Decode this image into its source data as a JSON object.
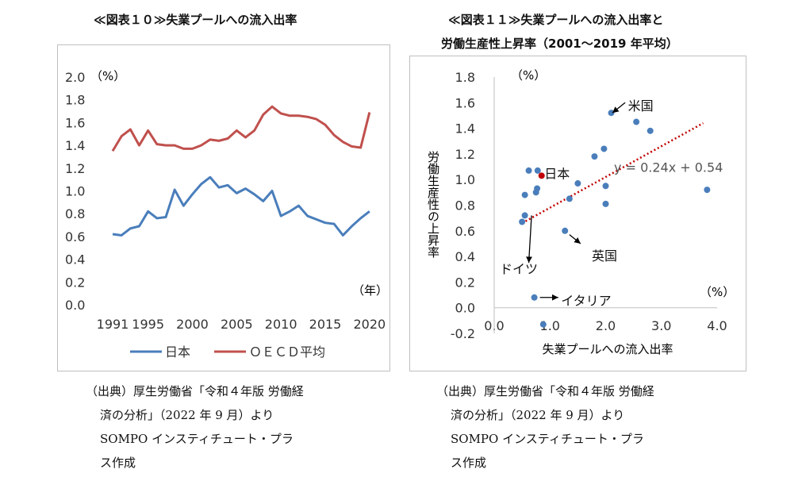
{
  "left": {
    "title": "≪図表１０≫失業プールへの流入出率",
    "unit_label": "（%）",
    "year_label": "（年）",
    "caption_lines": [
      "（出典）厚生労働省「令和４年版 労働経",
      "済の分析」（2022 年 9 月）より",
      "SOMPO インスティチュート・プラ",
      "ス作成"
    ]
  },
  "right": {
    "title_line1": "≪図表１１≫失業プールへの流入出率と",
    "title_line2": "労働生産性上昇率（2001～2019 年平均）",
    "unit_label_y": "（%）",
    "unit_label_x": "（%）",
    "caption_lines": [
      "（出典）厚生労働省「令和４年版 労働経",
      "済の分析」（2022 年 9 月）より",
      "SOMPO インスティチュート・プラ",
      "ス作成"
    ]
  },
  "chart_data": [
    {
      "type": "line",
      "title": "≪図表１０≫失業プールへの流入出率",
      "ylim": [
        0,
        2.0
      ],
      "yticks": [
        "0.0",
        "0.2",
        "0.4",
        "0.6",
        "0.8",
        "1.0",
        "1.2",
        "1.4",
        "1.6",
        "1.8",
        "2.0"
      ],
      "xlim": [
        1991,
        2021
      ],
      "xticks": [
        "1991",
        "1995",
        "2000",
        "2005",
        "2010",
        "2015",
        "2020"
      ],
      "legend_position": "bottom",
      "x": [
        1991,
        1992,
        1993,
        1994,
        1995,
        1996,
        1997,
        1998,
        1999,
        2000,
        2001,
        2002,
        2003,
        2004,
        2005,
        2006,
        2007,
        2008,
        2009,
        2010,
        2011,
        2012,
        2013,
        2014,
        2015,
        2016,
        2017,
        2018,
        2019,
        2020
      ],
      "series": [
        {
          "name": "日本",
          "color": "#4a7ebb",
          "values": [
            0.62,
            0.61,
            0.67,
            0.69,
            0.82,
            0.76,
            0.77,
            1.01,
            0.87,
            0.97,
            1.06,
            1.12,
            1.03,
            1.05,
            0.98,
            1.02,
            0.97,
            0.91,
            1.0,
            0.78,
            0.82,
            0.87,
            0.78,
            0.75,
            0.72,
            0.71,
            0.61,
            0.69,
            0.76,
            0.82
          ]
        },
        {
          "name": "ＯＥＣＤ平均",
          "color": "#c0504d",
          "values": [
            1.35,
            1.48,
            1.54,
            1.4,
            1.53,
            1.41,
            1.4,
            1.4,
            1.37,
            1.37,
            1.4,
            1.45,
            1.44,
            1.46,
            1.53,
            1.47,
            1.53,
            1.67,
            1.74,
            1.68,
            1.66,
            1.66,
            1.65,
            1.63,
            1.58,
            1.49,
            1.43,
            1.39,
            1.38,
            1.69
          ]
        }
      ]
    },
    {
      "type": "scatter",
      "title": "≪図表１１≫失業プールへの流入出率と労働生産性上昇率（2001～2019 年平均）",
      "xlabel": "失業プールへの流入出率",
      "ylabel": "労働生産性の上昇率",
      "xlim": [
        0,
        4.0
      ],
      "ylim": [
        -0.2,
        1.8
      ],
      "xticks": [
        "0.0",
        "1.0",
        "2.0",
        "3.0",
        "4.0"
      ],
      "yticks": [
        "-0.2",
        "0.0",
        "0.2",
        "0.4",
        "0.6",
        "0.8",
        "1.0",
        "1.2",
        "1.4",
        "1.6",
        "1.8"
      ],
      "points": [
        {
          "x": 0.5,
          "y": 0.67,
          "color": "#4a7ebb"
        },
        {
          "x": 0.55,
          "y": 0.72,
          "color": "#4a7ebb"
        },
        {
          "x": 0.55,
          "y": 0.88,
          "color": "#4a7ebb"
        },
        {
          "x": 0.62,
          "y": 1.07,
          "color": "#4a7ebb"
        },
        {
          "x": 0.72,
          "y": 0.08,
          "color": "#4a7ebb"
        },
        {
          "x": 0.75,
          "y": 0.9,
          "color": "#4a7ebb"
        },
        {
          "x": 0.77,
          "y": 0.93,
          "color": "#4a7ebb"
        },
        {
          "x": 0.78,
          "y": 1.07,
          "color": "#4a7ebb"
        },
        {
          "x": 0.85,
          "y": 1.03,
          "color": "#c00000"
        },
        {
          "x": 0.88,
          "y": -0.13,
          "color": "#4a7ebb"
        },
        {
          "x": 1.27,
          "y": 0.6,
          "color": "#4a7ebb"
        },
        {
          "x": 1.35,
          "y": 0.85,
          "color": "#4a7ebb"
        },
        {
          "x": 1.5,
          "y": 0.97,
          "color": "#4a7ebb"
        },
        {
          "x": 1.8,
          "y": 1.18,
          "color": "#4a7ebb"
        },
        {
          "x": 1.97,
          "y": 1.24,
          "color": "#4a7ebb"
        },
        {
          "x": 2.0,
          "y": 0.95,
          "color": "#4a7ebb"
        },
        {
          "x": 2.0,
          "y": 0.81,
          "color": "#4a7ebb"
        },
        {
          "x": 2.1,
          "y": 1.52,
          "color": "#4a7ebb"
        },
        {
          "x": 2.55,
          "y": 1.45,
          "color": "#4a7ebb"
        },
        {
          "x": 2.8,
          "y": 1.38,
          "color": "#4a7ebb"
        },
        {
          "x": 3.82,
          "y": 0.92,
          "color": "#4a7ebb"
        }
      ],
      "trendline": {
        "label": "y = 0.24x + 0.54",
        "slope": 0.24,
        "intercept": 0.54,
        "x_range": [
          0.5,
          3.75
        ],
        "color": "#c00000"
      },
      "annotations": [
        {
          "text": "米国",
          "x": 2.4,
          "y": 1.57,
          "arrow_to": [
            2.12,
            1.52
          ],
          "from": [
            2.35,
            1.6
          ]
        },
        {
          "text": "日本",
          "x": 0.9,
          "y": 1.04
        },
        {
          "text": "英国",
          "x": 1.75,
          "y": 0.4,
          "arrow_to": [
            1.55,
            0.5
          ],
          "from": [
            1.35,
            0.57
          ]
        },
        {
          "text": "ドイツ",
          "x": 0.1,
          "y": 0.3,
          "arrow_to": [
            0.62,
            0.35
          ],
          "from": [
            0.67,
            0.72
          ]
        },
        {
          "text": "イタリア",
          "x": 1.2,
          "y": 0.05,
          "arrow_to": [
            1.15,
            0.08
          ],
          "from": [
            0.82,
            0.08
          ]
        }
      ]
    }
  ]
}
